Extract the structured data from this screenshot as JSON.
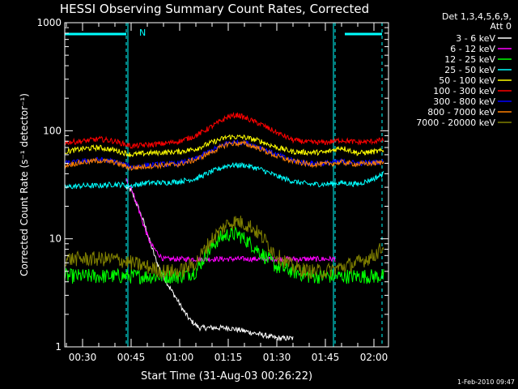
{
  "chart_data": {
    "type": "line",
    "title": "HESSI Observing Summary Count Rates, Corrected",
    "xlabel": "Start Time (31-Aug-03 00:26:22)",
    "ylabel": "Corrected Count Rate (s⁻¹ detector⁻¹)",
    "yscale": "log",
    "ylim": [
      1,
      1000
    ],
    "xlim_minutes": [
      24.5,
      124.5
    ],
    "x_ticks": [
      {
        "label": "00:30",
        "minute": 30
      },
      {
        "label": "00:45",
        "minute": 45
      },
      {
        "label": "01:00",
        "minute": 60
      },
      {
        "label": "01:15",
        "minute": 75
      },
      {
        "label": "01:30",
        "minute": 90
      },
      {
        "label": "01:45",
        "minute": 105
      },
      {
        "label": "02:00",
        "minute": 120
      }
    ],
    "y_ticks": [
      {
        "label": "1",
        "value": 1
      },
      {
        "label": "10",
        "value": 10
      },
      {
        "label": "100",
        "value": 100
      },
      {
        "label": "1000",
        "value": 1000
      }
    ],
    "legend_header": [
      "Det 1,3,4,5,6,9,",
      "Att 0"
    ],
    "legend_position": "right",
    "annotation": {
      "text": "N",
      "minute": 47
    },
    "attenuator_bars": [
      {
        "from_minute": 24.5,
        "to_minute": 43.5
      },
      {
        "from_minute": 111,
        "to_minute": 122.5
      }
    ],
    "vertical_lines": [
      {
        "minute": 24.5,
        "style": "solid"
      },
      {
        "minute": 43.5,
        "style": "dashed"
      },
      {
        "minute": 44,
        "style": "solid"
      },
      {
        "minute": 107.5,
        "style": "solid"
      },
      {
        "minute": 108,
        "style": "dashed"
      },
      {
        "minute": 122.5,
        "style": "dashed"
      }
    ],
    "series": [
      {
        "name": "3 - 6 keV",
        "color": "#ffffff",
        "x": [
          43.5,
          45,
          47,
          49,
          51,
          53,
          55,
          57,
          59,
          61,
          63,
          66,
          70,
          75,
          80,
          85,
          90,
          95
        ],
        "y": [
          30,
          28,
          20,
          14,
          9,
          6,
          4.5,
          3.5,
          2.8,
          2.2,
          1.8,
          1.5,
          1.5,
          1.5,
          1.4,
          1.3,
          1.2,
          1.2
        ]
      },
      {
        "name": "6 - 12 keV",
        "color": "#ff00ff",
        "x": [
          43.5,
          45,
          47,
          49,
          51,
          53,
          55,
          57,
          60,
          65,
          70,
          75,
          80,
          85,
          90,
          95,
          100,
          105,
          108
        ],
        "y": [
          35,
          30,
          20,
          13,
          9,
          7.5,
          6.5,
          6.5,
          6.5,
          6.5,
          6.5,
          6.5,
          6.5,
          6.5,
          6.5,
          6.5,
          6.5,
          6.5,
          6.5
        ]
      },
      {
        "name": "12 - 25 keV",
        "color": "#00ff00",
        "x": [
          24.5,
          30,
          35,
          40,
          45,
          50,
          55,
          60,
          65,
          68,
          72,
          75,
          78,
          82,
          86,
          90,
          95,
          100,
          105,
          110,
          115,
          120,
          123
        ],
        "y": [
          4.5,
          4.5,
          4.5,
          4.5,
          4.5,
          4.5,
          4.5,
          4.5,
          5,
          7,
          10,
          11,
          11,
          9,
          7,
          5.5,
          5,
          4.5,
          4.5,
          4.5,
          4.5,
          4.5,
          4.5
        ]
      },
      {
        "name": "25 - 50 keV",
        "color": "#00ffff",
        "x": [
          24.5,
          30,
          35,
          40,
          45,
          50,
          55,
          60,
          65,
          70,
          75,
          80,
          85,
          90,
          95,
          100,
          105,
          110,
          115,
          120,
          123
        ],
        "y": [
          30,
          31,
          31,
          32,
          31,
          33,
          33,
          34,
          36,
          42,
          48,
          48,
          44,
          38,
          34,
          32,
          32,
          33,
          32,
          36,
          40
        ]
      },
      {
        "name": "50 - 100 keV",
        "color": "#ffff00",
        "x": [
          24.5,
          30,
          35,
          40,
          45,
          50,
          55,
          60,
          65,
          70,
          75,
          80,
          85,
          90,
          95,
          100,
          105,
          110,
          115,
          120,
          123
        ],
        "y": [
          64,
          68,
          70,
          66,
          60,
          62,
          63,
          64,
          68,
          78,
          88,
          87,
          80,
          70,
          64,
          63,
          63,
          70,
          62,
          64,
          65
        ]
      },
      {
        "name": "100 - 300 keV",
        "color": "#ff0000",
        "x": [
          24.5,
          30,
          35,
          40,
          45,
          50,
          55,
          60,
          65,
          70,
          75,
          78,
          80,
          85,
          90,
          95,
          100,
          105,
          110,
          115,
          120,
          123
        ],
        "y": [
          78,
          80,
          84,
          80,
          72,
          74,
          76,
          80,
          90,
          110,
          135,
          140,
          132,
          115,
          96,
          82,
          78,
          78,
          82,
          78,
          80,
          82
        ]
      },
      {
        "name": "300 - 800 keV",
        "color": "#0000ff",
        "x": [
          24.5,
          30,
          35,
          40,
          45,
          50,
          55,
          60,
          65,
          70,
          75,
          80,
          85,
          90,
          95,
          100,
          105,
          110,
          115,
          120,
          123
        ],
        "y": [
          50,
          52,
          54,
          52,
          46,
          48,
          49,
          50,
          55,
          66,
          78,
          78,
          70,
          60,
          53,
          50,
          50,
          52,
          50,
          51,
          52
        ]
      },
      {
        "name": "800 - 7000 keV",
        "color": "#ff8000",
        "x": [
          24.5,
          30,
          35,
          40,
          45,
          50,
          55,
          60,
          65,
          70,
          75,
          80,
          85,
          90,
          95,
          100,
          105,
          110,
          115,
          120,
          123
        ],
        "y": [
          48,
          51,
          53,
          51,
          45,
          47,
          48,
          49,
          54,
          64,
          76,
          76,
          68,
          58,
          52,
          49,
          49,
          51,
          49,
          50,
          51
        ]
      },
      {
        "name": "7000 - 20000 keV",
        "color": "#808000",
        "x": [
          24.5,
          30,
          35,
          40,
          45,
          50,
          55,
          60,
          65,
          70,
          75,
          78,
          82,
          86,
          90,
          95,
          100,
          105,
          110,
          115,
          120,
          123
        ],
        "y": [
          6.5,
          6.5,
          6.5,
          6.5,
          6,
          5.5,
          5,
          5,
          6,
          10,
          14,
          14.5,
          13,
          10,
          7,
          5.5,
          5,
          5,
          5.5,
          6,
          7,
          8.5
        ]
      }
    ]
  },
  "footer_timestamp": "1-Feb-2010 09:47"
}
